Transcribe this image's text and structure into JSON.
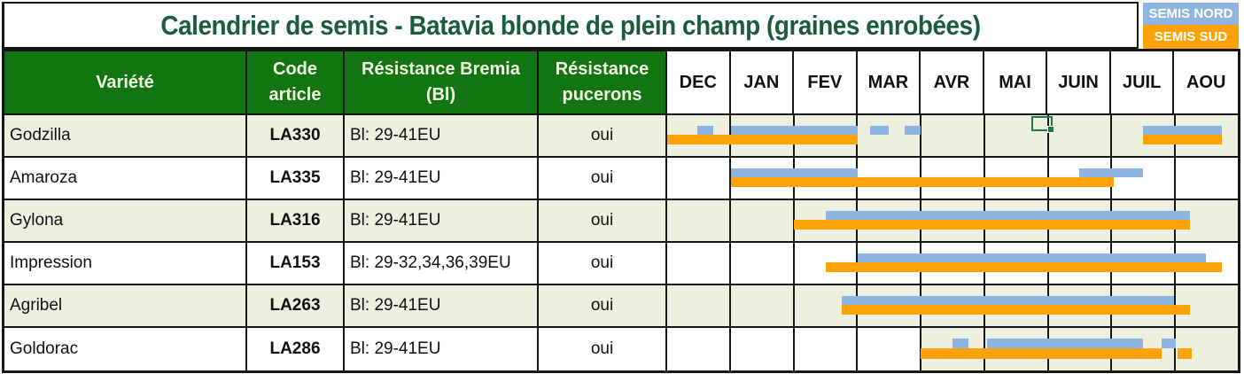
{
  "title": "Calendrier de semis - Batavia blonde de plein champ (graines enrobées)",
  "legend": {
    "north": "SEMIS NORD",
    "south": "SEMIS SUD"
  },
  "table": {
    "columns": [
      "Variété",
      "Code\narticle",
      "Résistance Bremia\n(Bl)",
      "Résistance\npucerons"
    ]
  },
  "colors": {
    "header_green": "#127511",
    "title_green": "#1a5c3c",
    "row_tint": "#edf0de",
    "north_blue": "#8eb4e2",
    "south_orange": "#ffa207",
    "grid_border": "#161616",
    "selection_green": "#1c7a46"
  },
  "rows_meta": [
    {
      "shade": "tint"
    },
    {
      "shade": "white"
    },
    {
      "shade": "tint"
    },
    {
      "shade": "white"
    },
    {
      "shade": "tint"
    },
    {
      "shade": "white",
      "months_tint_from": 4
    }
  ],
  "selection": {
    "row_index": 0,
    "start": 5.75,
    "end": 6.03
  },
  "chart_data": {
    "type": "gantt",
    "title": "Calendrier de semis - Batavia blonde de plein champ (graines enrobées)",
    "unit": "months, 0 = start of DEC, 9 = end of AOU",
    "months": [
      "DEC",
      "JAN",
      "FEV",
      "MAR",
      "AVR",
      "MAI",
      "JUIN",
      "JUIL",
      "AOU"
    ],
    "legend_position": "top-right",
    "legend_entries": [
      "SEMIS NORD",
      "SEMIS SUD"
    ],
    "series": [
      {
        "variety": "Godzilla",
        "code": "LA330",
        "bremia": "Bl: 29-41EU",
        "pucerons": "oui",
        "semis_nord": [
          [
            0.47,
            0.72
          ],
          [
            1,
            3
          ],
          [
            3.2,
            3.5
          ],
          [
            3.75,
            4
          ],
          [
            7.5,
            8.75
          ]
        ],
        "semis_sud": [
          [
            0,
            3
          ],
          [
            7.5,
            8.75
          ]
        ]
      },
      {
        "variety": "Amaroza",
        "code": "LA335",
        "bremia": "Bl: 29-41EU",
        "pucerons": "oui",
        "semis_nord": [
          [
            1,
            3
          ],
          [
            6.5,
            7.5
          ]
        ],
        "semis_sud": [
          [
            1,
            7.05
          ]
        ]
      },
      {
        "variety": "Gylona",
        "code": "LA316",
        "bremia": "Bl: 29-41EU",
        "pucerons": "oui",
        "semis_nord": [
          [
            2.5,
            8.25
          ]
        ],
        "semis_sud": [
          [
            2,
            8.25
          ]
        ]
      },
      {
        "variety": "Impression",
        "code": "LA153",
        "bremia": "Bl: 29-32,34,36,39EU",
        "pucerons": "oui",
        "semis_nord": [
          [
            3,
            8.5
          ]
        ],
        "semis_sud": [
          [
            2.5,
            8.75
          ]
        ]
      },
      {
        "variety": "Agribel",
        "code": "LA263",
        "bremia": "Bl: 29-41EU",
        "pucerons": "oui",
        "semis_nord": [
          [
            2.75,
            8
          ]
        ],
        "semis_sud": [
          [
            2.75,
            8.25
          ]
        ]
      },
      {
        "variety": "Goldorac",
        "code": "LA286",
        "bremia": "Bl: 29-41EU",
        "pucerons": "oui",
        "semis_nord": [
          [
            4.5,
            4.75
          ],
          [
            5.05,
            7.5
          ],
          [
            7.8,
            8.02
          ]
        ],
        "semis_sud": [
          [
            4,
            7.8
          ],
          [
            8.05,
            8.28
          ]
        ]
      }
    ]
  }
}
